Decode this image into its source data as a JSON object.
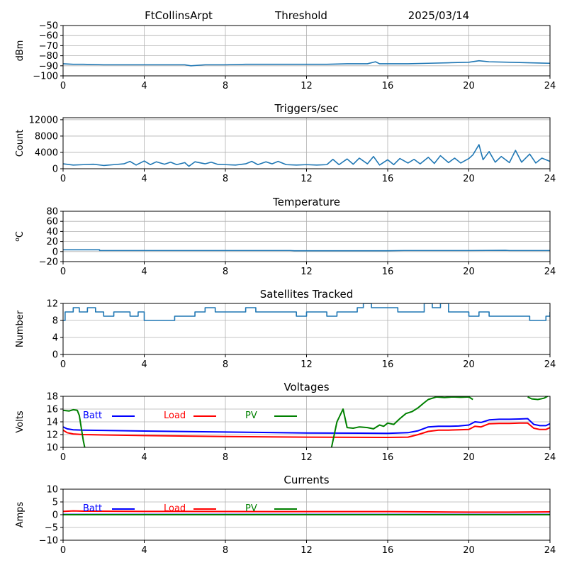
{
  "header": {
    "station": "FtCollinsArpt",
    "mode": "Threshold",
    "date": "2025/03/14"
  },
  "colors": {
    "trace": "#1f77b4",
    "batt": "#0000ff",
    "load": "#ff0000",
    "pv": "#008000",
    "grid": "#b0b0b0",
    "axis": "#000000"
  },
  "chart_data": [
    {
      "id": "threshold",
      "type": "line",
      "title": "",
      "xlabel": "",
      "ylabel": "dBm",
      "xlim": [
        0,
        24
      ],
      "ylim": [
        -100,
        -50
      ],
      "xticks": [
        0,
        4,
        8,
        12,
        16,
        20,
        24
      ],
      "yticks": [
        -100,
        -90,
        -80,
        -70,
        -60,
        -50
      ],
      "ytick_labels": [
        "−100",
        "−90",
        "−80",
        "−70",
        "−60",
        "−50"
      ],
      "grid": true,
      "series": [
        {
          "color_key": "trace",
          "x": [
            0,
            0.5,
            1,
            2,
            3,
            4,
            5,
            6,
            6.3,
            7,
            8,
            9,
            10,
            11,
            12,
            13,
            14,
            15,
            15.4,
            15.6,
            16,
            17,
            18,
            19,
            20,
            20.5,
            21,
            22,
            23,
            24
          ],
          "y": [
            -88,
            -88.5,
            -88.5,
            -89,
            -89,
            -89,
            -89,
            -89,
            -90,
            -89,
            -89,
            -88.5,
            -88.5,
            -88.5,
            -88.5,
            -88.5,
            -88,
            -88,
            -86,
            -88,
            -88,
            -88,
            -87.5,
            -87,
            -86.5,
            -85,
            -86,
            -86.5,
            -87,
            -87.5
          ]
        }
      ]
    },
    {
      "id": "triggers",
      "type": "line",
      "title": "Triggers/sec",
      "xlabel": "",
      "ylabel": "Count",
      "xlim": [
        0,
        24
      ],
      "ylim": [
        0,
        12500
      ],
      "xticks": [
        0,
        4,
        8,
        12,
        16,
        20,
        24
      ],
      "yticks": [
        0,
        4000,
        8000,
        12000
      ],
      "ytick_labels": [
        "0",
        "4000",
        "8000",
        "12000"
      ],
      "grid": true,
      "series": [
        {
          "color_key": "trace",
          "x": [
            0,
            0.5,
            1,
            1.5,
            2,
            2.5,
            3,
            3.3,
            3.6,
            4,
            4.3,
            4.6,
            5,
            5.3,
            5.6,
            6,
            6.2,
            6.5,
            7,
            7.3,
            7.6,
            8,
            8.5,
            9,
            9.3,
            9.6,
            10,
            10.3,
            10.6,
            11,
            11.5,
            12,
            12.5,
            13,
            13.3,
            13.6,
            14,
            14.3,
            14.6,
            15,
            15.3,
            15.6,
            16,
            16.3,
            16.6,
            17,
            17.3,
            17.6,
            18,
            18.3,
            18.6,
            19,
            19.3,
            19.6,
            20,
            20.2,
            20.5,
            20.7,
            21,
            21.3,
            21.6,
            22,
            22.3,
            22.6,
            23,
            23.3,
            23.6,
            24
          ],
          "y": [
            1200,
            900,
            1000,
            1100,
            800,
            1000,
            1200,
            1800,
            900,
            1900,
            1000,
            1700,
            1100,
            1600,
            1000,
            1500,
            600,
            1700,
            1200,
            1600,
            1100,
            1000,
            900,
            1200,
            1800,
            1000,
            1700,
            1200,
            1800,
            1000,
            900,
            1000,
            900,
            1000,
            2300,
            1000,
            2400,
            1100,
            2600,
            1200,
            3000,
            900,
            2200,
            1000,
            2500,
            1400,
            2300,
            1200,
            2800,
            1300,
            3200,
            1500,
            2600,
            1400,
            2500,
            3400,
            5900,
            2200,
            4200,
            1600,
            3000,
            1500,
            4500,
            1600,
            3600,
            1400,
            2600,
            1800
          ]
        }
      ]
    },
    {
      "id": "temperature",
      "type": "line",
      "title": "Temperature",
      "xlabel": "",
      "ylabel": "oC",
      "xlim": [
        0,
        24
      ],
      "ylim": [
        -20,
        80
      ],
      "xticks": [
        0,
        4,
        8,
        12,
        16,
        20,
        24
      ],
      "yticks": [
        -20,
        0,
        20,
        40,
        60,
        80
      ],
      "ytick_labels": [
        "−20",
        "0",
        "20",
        "40",
        "60",
        "80"
      ],
      "grid": true,
      "series": [
        {
          "color_key": "trace",
          "x": [
            0,
            1.8,
            1.8,
            4,
            8,
            11.2,
            11.4,
            12,
            16,
            16.8,
            20,
            21.8,
            22,
            24
          ],
          "y": [
            3.5,
            3.5,
            2,
            2,
            2,
            2,
            1.5,
            1.5,
            1.5,
            2,
            2,
            2.5,
            2,
            2
          ]
        }
      ]
    },
    {
      "id": "satellites",
      "type": "line",
      "title": "Satellites Tracked",
      "xlabel": "",
      "ylabel": "Number",
      "xlim": [
        0,
        24
      ],
      "ylim": [
        0,
        12
      ],
      "xticks": [
        0,
        4,
        8,
        12,
        16,
        20,
        24
      ],
      "yticks": [
        0,
        4,
        8,
        12
      ],
      "ytick_labels": [
        "0",
        "4",
        "8",
        "12"
      ],
      "grid": true,
      "series": [
        {
          "color_key": "trace",
          "step": true,
          "x": [
            0,
            0.1,
            0.5,
            0.8,
            1.2,
            1.6,
            2.0,
            2.5,
            3.0,
            3.3,
            3.7,
            4.0,
            4.5,
            5.0,
            5.5,
            6.0,
            6.5,
            7.0,
            7.5,
            8.0,
            8.5,
            9.0,
            9.5,
            10.0,
            10.5,
            11.0,
            11.5,
            12.0,
            12.5,
            13.0,
            13.5,
            14.0,
            14.5,
            14.8,
            15.2,
            15.6,
            16.0,
            16.5,
            17.0,
            17.5,
            17.8,
            18.2,
            18.6,
            19.0,
            19.5,
            20.0,
            20.5,
            21.0,
            21.5,
            22.0,
            22.5,
            23.0,
            23.5,
            23.8,
            24
          ],
          "y": [
            8,
            10,
            11,
            10,
            11,
            10,
            9,
            10,
            10,
            9,
            10,
            8,
            8,
            8,
            9,
            9,
            10,
            11,
            10,
            10,
            10,
            11,
            10,
            10,
            10,
            10,
            9,
            10,
            10,
            9,
            10,
            10,
            11,
            12,
            11,
            11,
            11,
            10,
            10,
            10,
            12,
            11,
            12,
            10,
            10,
            9,
            10,
            9,
            9,
            9,
            9,
            8,
            8,
            9,
            10
          ]
        }
      ]
    },
    {
      "id": "voltages",
      "type": "line",
      "title": "Voltages",
      "xlabel": "",
      "ylabel": "Volts",
      "xlim": [
        0,
        24
      ],
      "ylim": [
        10,
        18
      ],
      "xticks": [
        0,
        4,
        8,
        12,
        16,
        20,
        24
      ],
      "yticks": [
        10,
        12,
        14,
        16,
        18
      ],
      "ytick_labels": [
        "10",
        "12",
        "14",
        "16",
        "18"
      ],
      "grid": true,
      "legend": "top-left",
      "series": [
        {
          "name": "Batt",
          "color_key": "batt",
          "x": [
            0,
            0.2,
            0.5,
            1,
            2,
            4,
            8,
            12,
            16,
            17,
            17.5,
            18,
            18.5,
            19,
            19.5,
            20,
            20.3,
            20.6,
            21,
            21.5,
            22,
            22.5,
            22.9,
            23.2,
            23.5,
            23.8,
            24
          ],
          "y": [
            13.2,
            12.9,
            12.75,
            12.7,
            12.65,
            12.55,
            12.4,
            12.25,
            12.2,
            12.3,
            12.6,
            13.2,
            13.3,
            13.3,
            13.35,
            13.5,
            14.0,
            13.9,
            14.3,
            14.4,
            14.4,
            14.45,
            14.5,
            13.6,
            13.4,
            13.4,
            13.7
          ]
        },
        {
          "name": "Load",
          "color_key": "load",
          "x": [
            0,
            0.2,
            0.5,
            1,
            2,
            4,
            8,
            12,
            16,
            17,
            17.5,
            18,
            18.5,
            19,
            19.5,
            20,
            20.3,
            20.6,
            21,
            21.5,
            22,
            22.5,
            22.9,
            23.2,
            23.5,
            23.8,
            24
          ],
          "y": [
            12.7,
            12.3,
            12.1,
            12.0,
            11.95,
            11.85,
            11.7,
            11.6,
            11.55,
            11.6,
            12.0,
            12.5,
            12.7,
            12.7,
            12.75,
            12.8,
            13.3,
            13.2,
            13.7,
            13.75,
            13.75,
            13.8,
            13.8,
            13.0,
            12.8,
            12.8,
            13.1
          ]
        },
        {
          "name": "PV",
          "color_key": "pv",
          "segments": [
            {
              "x": [
                0,
                0.3,
                0.5,
                0.7,
                0.8,
                1.0,
                1.1
              ],
              "y": [
                15.8,
                15.7,
                15.9,
                15.8,
                15.0,
                11.0,
                9.5
              ]
            },
            {
              "x": [
                13.2,
                13.5,
                13.8,
                14.0,
                14.3,
                14.6,
                15.0,
                15.3,
                15.6,
                15.8,
                16.0,
                16.3,
                16.6,
                16.9,
                17.2,
                17.5,
                17.8,
                18.0,
                18.4,
                18.8,
                19.2,
                19.6,
                20.0,
                20.2
              ],
              "y": [
                9.5,
                14.0,
                16.0,
                13.1,
                13.0,
                13.2,
                13.1,
                12.9,
                13.5,
                13.3,
                13.8,
                13.6,
                14.5,
                15.3,
                15.6,
                16.2,
                17.0,
                17.5,
                17.9,
                17.8,
                17.9,
                17.85,
                17.9,
                17.5
              ]
            },
            {
              "x": [
                22.9,
                23.1,
                23.4,
                23.7,
                24
              ],
              "y": [
                17.9,
                17.6,
                17.5,
                17.7,
                18.2
              ]
            }
          ]
        }
      ]
    },
    {
      "id": "currents",
      "type": "line",
      "title": "Currents",
      "xlabel": "",
      "ylabel": "Amps",
      "xlim": [
        0,
        24
      ],
      "ylim": [
        -10,
        10
      ],
      "xticks": [
        0,
        4,
        8,
        12,
        16,
        20,
        24
      ],
      "yticks": [
        -10,
        -5,
        0,
        5,
        10
      ],
      "ytick_labels": [
        "−10",
        "−5",
        "0",
        "5",
        "10"
      ],
      "grid": true,
      "legend": "top-left",
      "series": [
        {
          "name": "Batt",
          "color_key": "batt",
          "x": [
            0,
            24
          ],
          "y": [
            0.1,
            0.1
          ]
        },
        {
          "name": "Load",
          "color_key": "load",
          "x": [
            0,
            0.5,
            1,
            4,
            8,
            12,
            16,
            18,
            20,
            22,
            24
          ],
          "y": [
            1.3,
            1.5,
            1.4,
            1.3,
            1.25,
            1.2,
            1.2,
            1.1,
            1.0,
            1.0,
            1.1
          ]
        },
        {
          "name": "PV",
          "color_key": "pv",
          "x": [
            0,
            24
          ],
          "y": [
            0.0,
            0.0
          ]
        }
      ]
    }
  ]
}
